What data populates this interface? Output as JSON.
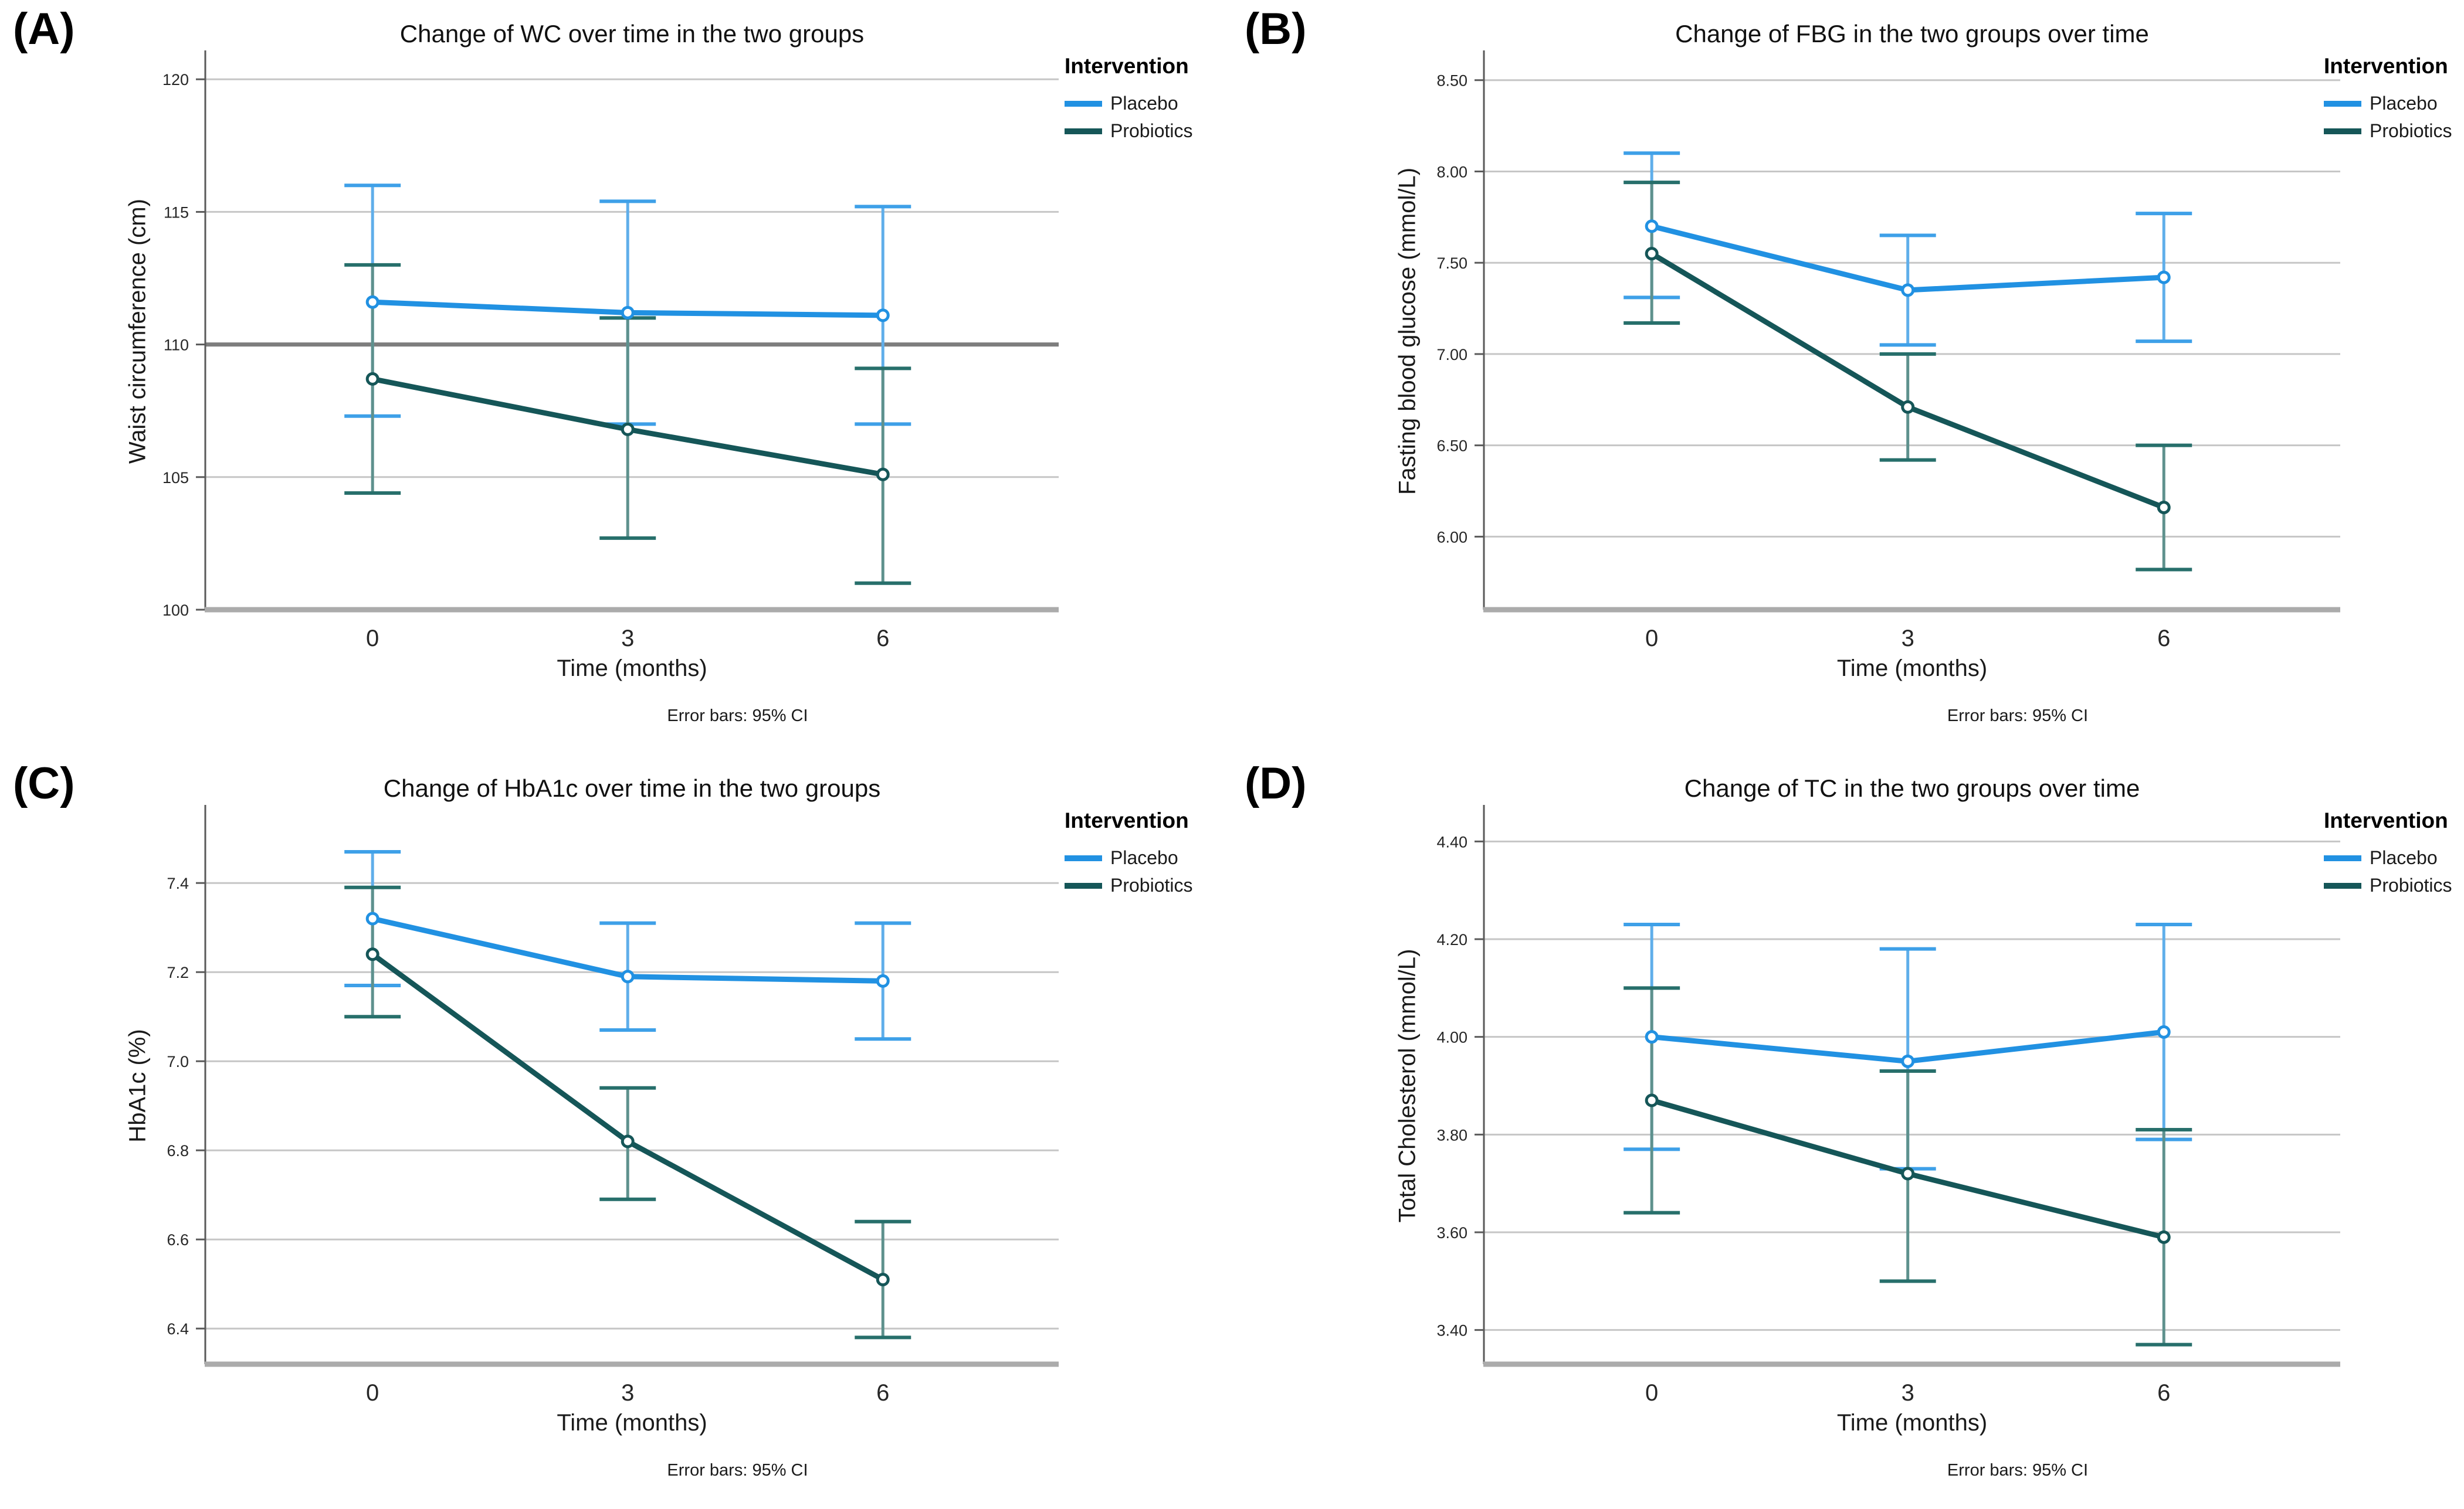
{
  "figure": {
    "legend": {
      "title": "Intervention",
      "items": [
        {
          "label": "Placebo",
          "key": "placebo"
        },
        {
          "label": "Probiotics",
          "key": "probiotics"
        }
      ]
    }
  },
  "colors": {
    "placebo": {
      "line": "#2191E2",
      "error": "#5FAEEA",
      "cap": "#3EA0E8"
    },
    "probiotics": {
      "line": "#155658",
      "error": "#5E918D",
      "cap": "#276F6B"
    },
    "grid": "#C6C6C6",
    "grid_emphasis": "#7D7D7D",
    "axis": "#ABABAB",
    "spine": "#5A5A5A",
    "text": "#262626"
  },
  "chart_data": [
    {
      "type": "line",
      "panel": "(A)",
      "title": "Change of WC over time in the two groups",
      "ylabel": "Waist circumference (cm)",
      "xlabel": "Time (months)",
      "caption": "Error bars: 95% CI",
      "legend_position": "top-right",
      "grid": true,
      "categories": [
        "0",
        "3",
        "6"
      ],
      "ylim": [
        100,
        121
      ],
      "yticks": [
        {
          "v": 100,
          "label": "100"
        },
        {
          "v": 105,
          "label": "105"
        },
        {
          "v": 110,
          "label": "110"
        },
        {
          "v": 115,
          "label": "115"
        },
        {
          "v": 120,
          "label": "120"
        }
      ],
      "reference_line": 110,
      "series": [
        {
          "name": "Placebo",
          "color": "placebo",
          "values": [
            111.6,
            111.2,
            111.1
          ],
          "ci_low": [
            107.3,
            107.0,
            107.0
          ],
          "ci_high": [
            116.0,
            115.4,
            115.2
          ]
        },
        {
          "name": "Probiotics",
          "color": "probiotics",
          "values": [
            108.7,
            106.8,
            105.1
          ],
          "ci_low": [
            104.4,
            102.7,
            101.0
          ],
          "ci_high": [
            113.0,
            111.0,
            109.1
          ]
        }
      ]
    },
    {
      "type": "line",
      "panel": "(B)",
      "title": "Change of FBG in the two groups over time",
      "ylabel": "Fasting blood glucose (mmol/L)",
      "xlabel": "Time (months)",
      "caption": "Error bars: 95% CI",
      "legend_position": "top-right",
      "grid": true,
      "categories": [
        "0",
        "3",
        "6"
      ],
      "ylim": [
        5.6,
        8.65
      ],
      "yticks": [
        {
          "v": 6.0,
          "label": "6.00"
        },
        {
          "v": 6.5,
          "label": "6.50"
        },
        {
          "v": 7.0,
          "label": "7.00"
        },
        {
          "v": 7.5,
          "label": "7.50"
        },
        {
          "v": 8.0,
          "label": "8.00"
        },
        {
          "v": 8.5,
          "label": "8.50"
        }
      ],
      "series": [
        {
          "name": "Placebo",
          "color": "placebo",
          "values": [
            7.7,
            7.35,
            7.42
          ],
          "ci_low": [
            7.31,
            7.05,
            7.07
          ],
          "ci_high": [
            8.1,
            7.65,
            7.77
          ]
        },
        {
          "name": "Probiotics",
          "color": "probiotics",
          "values": [
            7.55,
            6.71,
            6.16
          ],
          "ci_low": [
            7.17,
            6.42,
            5.82
          ],
          "ci_high": [
            7.94,
            7.0,
            6.5
          ]
        }
      ]
    },
    {
      "type": "line",
      "panel": "(C)",
      "title": "Change of HbA1c over time in the two groups",
      "ylabel": "HbA1c (%)",
      "xlabel": "Time (months)",
      "caption": "Error bars: 95% CI",
      "legend_position": "top-right",
      "grid": true,
      "categories": [
        "0",
        "3",
        "6"
      ],
      "ylim": [
        6.32,
        7.57
      ],
      "yticks": [
        {
          "v": 6.4,
          "label": "6.4"
        },
        {
          "v": 6.6,
          "label": "6.6"
        },
        {
          "v": 6.8,
          "label": "6.8"
        },
        {
          "v": 7.0,
          "label": "7.0"
        },
        {
          "v": 7.2,
          "label": "7.2"
        },
        {
          "v": 7.4,
          "label": "7.4"
        }
      ],
      "series": [
        {
          "name": "Placebo",
          "color": "placebo",
          "values": [
            7.32,
            7.19,
            7.18
          ],
          "ci_low": [
            7.17,
            7.07,
            7.05
          ],
          "ci_high": [
            7.47,
            7.31,
            7.31
          ]
        },
        {
          "name": "Probiotics",
          "color": "probiotics",
          "values": [
            7.24,
            6.82,
            6.51
          ],
          "ci_low": [
            7.1,
            6.69,
            6.38
          ],
          "ci_high": [
            7.39,
            6.94,
            6.64
          ]
        }
      ]
    },
    {
      "type": "line",
      "panel": "(D)",
      "title": "Change of TC in the two groups over time",
      "ylabel": "Total Cholesterol (mmol/L)",
      "xlabel": "Time (months)",
      "caption": "Error bars: 95% CI",
      "legend_position": "top-right",
      "grid": true,
      "categories": [
        "0",
        "3",
        "6"
      ],
      "ylim": [
        3.33,
        4.47
      ],
      "yticks": [
        {
          "v": 3.4,
          "label": "3.40"
        },
        {
          "v": 3.6,
          "label": "3.60"
        },
        {
          "v": 3.8,
          "label": "3.80"
        },
        {
          "v": 4.0,
          "label": "4.00"
        },
        {
          "v": 4.2,
          "label": "4.20"
        },
        {
          "v": 4.4,
          "label": "4.40"
        }
      ],
      "series": [
        {
          "name": "Placebo",
          "color": "placebo",
          "values": [
            4.0,
            3.95,
            4.01
          ],
          "ci_low": [
            3.77,
            3.73,
            3.79
          ],
          "ci_high": [
            4.23,
            4.18,
            4.23
          ]
        },
        {
          "name": "Probiotics",
          "color": "probiotics",
          "values": [
            3.87,
            3.72,
            3.59
          ],
          "ci_low": [
            3.64,
            3.5,
            3.37
          ],
          "ci_high": [
            4.1,
            3.93,
            3.81
          ]
        }
      ]
    }
  ]
}
